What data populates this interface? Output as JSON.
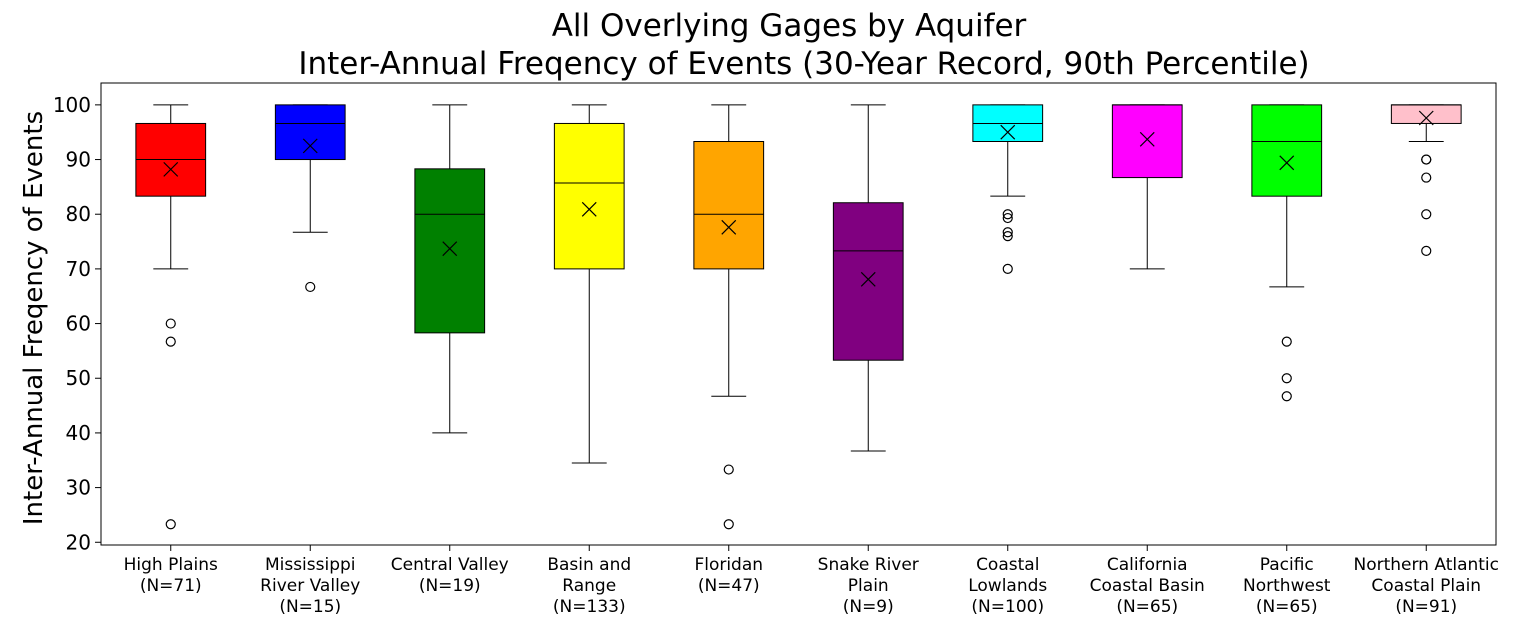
{
  "chart_data": {
    "type": "box",
    "title_line1": "All Overlying Gages by Aquifer",
    "title_line2": "Inter-Annual Freqency of Events (30-Year Record, 90th Percentile)",
    "xlabel": "",
    "ylabel": "Inter-Annual Freqency of Events",
    "ylim": [
      19.5,
      104
    ],
    "yticks": [
      20,
      30,
      40,
      50,
      60,
      70,
      80,
      90,
      100
    ],
    "mean_marker": "x",
    "groups": [
      {
        "label_lines": [
          "High Plains",
          "(N=71)"
        ],
        "color": "#ff0000",
        "whisker_low": 70,
        "q1": 83.3,
        "median": 90,
        "q3": 96.6,
        "whisker_high": 100,
        "mean": 88.2,
        "outliers": [
          60,
          56.7,
          23.3
        ]
      },
      {
        "label_lines": [
          "Mississippi",
          "River Valley",
          "(N=15)"
        ],
        "color": "#0000ff",
        "whisker_low": 76.7,
        "q1": 90,
        "median": 96.6,
        "q3": 100,
        "whisker_high": 100,
        "mean": 92.5,
        "outliers": [
          66.7
        ]
      },
      {
        "label_lines": [
          "Central Valley",
          "(N=19)"
        ],
        "color": "#008000",
        "whisker_low": 40,
        "q1": 58.3,
        "median": 80,
        "q3": 88.3,
        "whisker_high": 100,
        "mean": 73.7,
        "outliers": []
      },
      {
        "label_lines": [
          "Basin and",
          "Range",
          "(N=133)"
        ],
        "color": "#ffff00",
        "whisker_low": 34.5,
        "q1": 70,
        "median": 85.7,
        "q3": 96.6,
        "whisker_high": 100,
        "mean": 80.9,
        "outliers": []
      },
      {
        "label_lines": [
          "Floridan",
          "(N=47)"
        ],
        "color": "#ffa500",
        "whisker_low": 46.7,
        "q1": 70,
        "median": 80,
        "q3": 93.3,
        "whisker_high": 100,
        "mean": 77.6,
        "outliers": [
          33.3,
          23.3
        ]
      },
      {
        "label_lines": [
          "Snake River",
          "Plain",
          "(N=9)"
        ],
        "color": "#800080",
        "whisker_low": 36.7,
        "q1": 53.3,
        "median": 73.3,
        "q3": 82.1,
        "whisker_high": 100,
        "mean": 68.1,
        "outliers": []
      },
      {
        "label_lines": [
          "Coastal",
          "Lowlands",
          "(N=100)"
        ],
        "color": "#00ffff",
        "whisker_low": 83.3,
        "q1": 93.3,
        "median": 96.6,
        "q3": 100,
        "whisker_high": 100,
        "mean": 95,
        "outliers": [
          80,
          79.3,
          76.7,
          76,
          70
        ]
      },
      {
        "label_lines": [
          "California",
          "Coastal Basin",
          "(N=65)"
        ],
        "color": "#ff00ff",
        "whisker_low": 70,
        "q1": 86.7,
        "median": 100,
        "q3": 100,
        "whisker_high": 100,
        "mean": 93.7,
        "outliers": []
      },
      {
        "label_lines": [
          "Pacific",
          "Northwest",
          "(N=65)"
        ],
        "color": "#00ff00",
        "whisker_low": 66.7,
        "q1": 83.3,
        "median": 93.3,
        "q3": 100,
        "whisker_high": 100,
        "mean": 89.4,
        "outliers": [
          56.7,
          50,
          46.7
        ]
      },
      {
        "label_lines": [
          "Northern Atlantic",
          "Coastal Plain",
          "(N=91)"
        ],
        "color": "#ffc0cb",
        "whisker_low": 93.3,
        "q1": 96.6,
        "median": 100,
        "q3": 100,
        "whisker_high": 100,
        "mean": 97.6,
        "outliers": [
          90,
          90,
          86.7,
          80,
          73.3
        ]
      }
    ]
  }
}
